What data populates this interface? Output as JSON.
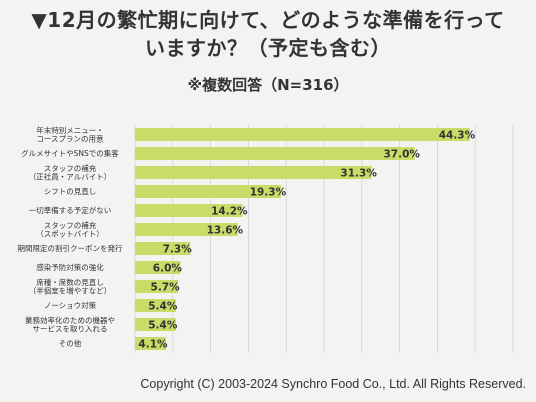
{
  "header": {
    "title_line1": "▼12月の繁忙期に向けて、どのような準備を行って",
    "title_line2": "いますか？（予定も含む）",
    "subtitle": "※複数回答（N=316）"
  },
  "footer": {
    "copyright": "Copyright (C) 2003-2024  Synchro Food Co., Ltd. All Rights Reserved."
  },
  "colors": {
    "bar": "#c8dc68",
    "grid": "#d4d4d4",
    "text": "#333333",
    "background": "#f3f3f1"
  },
  "chart_data": {
    "type": "bar",
    "orientation": "horizontal",
    "categories": [
      [
        "年末特別メニュー・",
        "コースプランの用意"
      ],
      [
        "グルメサイトやSNSでの集客"
      ],
      [
        "スタッフの補充",
        "（正社員・アルバイト）"
      ],
      [
        "シフトの見直し"
      ],
      [
        "一切準備する予定がない"
      ],
      [
        "スタッフの補充",
        "（スポットバイト）"
      ],
      [
        "期間限定の割引クーポンを発行"
      ],
      [
        "感染予防対策の強化"
      ],
      [
        "席種・席数の見直し",
        "（半個室を増やすなど）"
      ],
      [
        "ノーショウ対策"
      ],
      [
        "業務効率化のための機器や",
        "サービスを取り入れる"
      ],
      [
        "その他"
      ]
    ],
    "values": [
      44.3,
      37.0,
      31.3,
      19.3,
      14.2,
      13.6,
      7.3,
      6.0,
      5.7,
      5.4,
      5.4,
      4.1
    ],
    "value_labels": [
      "44.3%",
      "37.0%",
      "31.3%",
      "19.3%",
      "14.2%",
      "13.6%",
      "7.3%",
      "6.0%",
      "5.7%",
      "5.4%",
      "5.4%",
      "4.1%"
    ],
    "xlim": [
      0,
      50
    ],
    "grid": true,
    "legend": "none"
  }
}
